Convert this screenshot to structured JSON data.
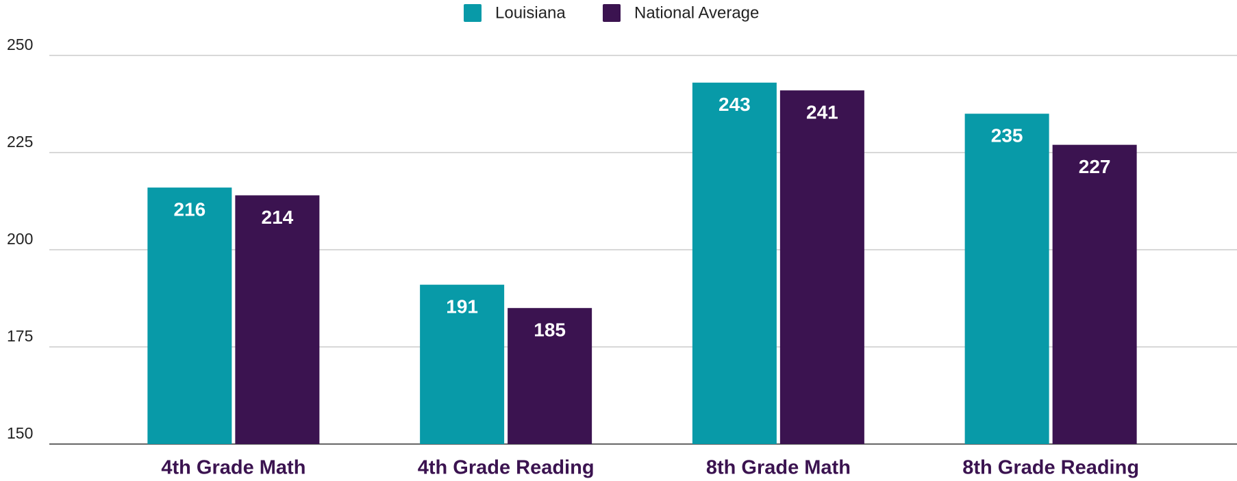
{
  "chart_data": {
    "type": "bar",
    "categories": [
      "4th Grade Math",
      "4th Grade Reading",
      "8th Grade Math",
      "8th Grade Reading"
    ],
    "series": [
      {
        "name": "Louisiana",
        "color": "#089aa8",
        "values": [
          216,
          191,
          243,
          235
        ]
      },
      {
        "name": "National Average",
        "color": "#3b1350",
        "values": [
          214,
          185,
          241,
          227
        ]
      }
    ],
    "ylim": [
      150,
      250
    ],
    "yticks": [
      150,
      175,
      200,
      225,
      250
    ],
    "grid": true,
    "legend": "top"
  }
}
